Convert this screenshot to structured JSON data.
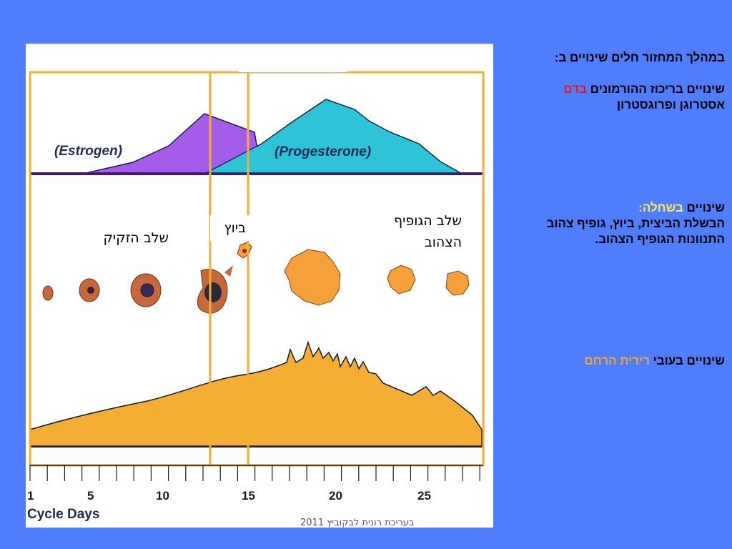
{
  "hormones": {
    "estrogen_label": "(Estrogen)",
    "progesterone_label": "(Progesterone)"
  },
  "phases": {
    "follicular": "שלב הזקיק",
    "ovulation": "ביוץ",
    "luteal_line1": "שלב הגופיף",
    "luteal_line2": "הצהוב"
  },
  "axis": {
    "title": "Cycle Days",
    "ticks": [
      "1",
      "5",
      "10",
      "15",
      "20",
      "25"
    ]
  },
  "side": {
    "heading": "במהלך המחזור חלים שינויים ב:",
    "hormones_prefix": "שינויים בריכוז  ההורמונים ",
    "hormones_highlight": "בדם",
    "hormones_line2": "אסטרוגן ופרוגסטרון",
    "ovary_prefix": "שינויים ",
    "ovary_highlight": "בשחלה:",
    "ovary_line2": "הבשלת הביצית, ביוץ, גופיף צהוב",
    "ovary_line3": "התנוונות הגופיף הצהוב.",
    "uterus_prefix": "שינויים בעובי ",
    "uterus_highlight": "רירית הרחם"
  },
  "credit": "בעריכת רונית לבקוביץ 2011",
  "colors": {
    "background": "#4f7dfb",
    "estrogen": "#a35de8",
    "progesterone": "#2ec3d6",
    "ovary_follicle": "#c5683c",
    "corpus_luteum": "#f6a03c",
    "endometrium": "#f4ae33",
    "highlight_red": "#e8141a",
    "highlight_yellow": "#ffea4d",
    "highlight_orange": "#f4a32d"
  }
}
